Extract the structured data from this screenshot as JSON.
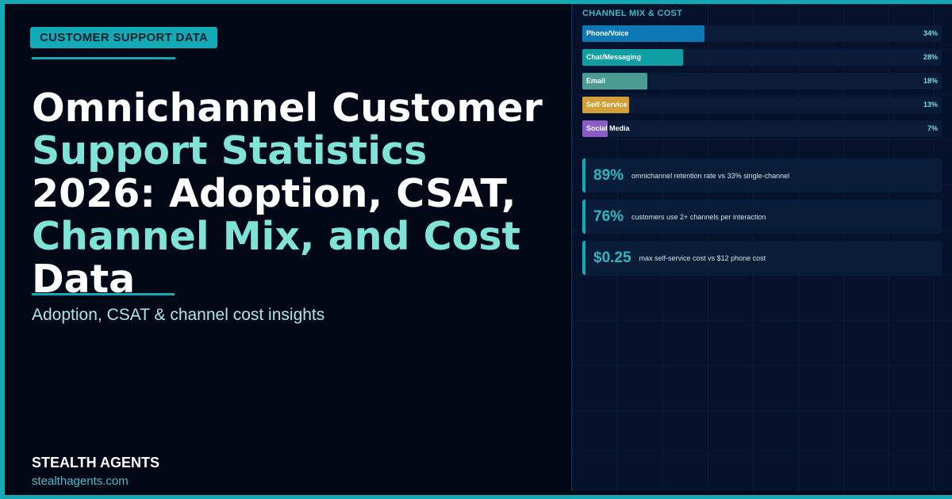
{
  "header": {
    "badge": "CUSTOMER SUPPORT DATA",
    "title_lines": [
      "Omnichannel Customer",
      "Support Statistics",
      "2026: Adoption, CSAT,",
      "Channel Mix, and Cost",
      "Data"
    ],
    "subtitle": "Adoption, CSAT & channel cost insights"
  },
  "footer": {
    "brand": "STEALTH AGENTS",
    "url": "stealthagents.com"
  },
  "chart_data": {
    "type": "bar",
    "orientation": "horizontal",
    "title": "CHANNEL MIX & COST",
    "categories": [
      "Phone/Voice",
      "Chat/Messaging",
      "Email",
      "Self-Service",
      "Social Media"
    ],
    "values": [
      34,
      28,
      18,
      13,
      7
    ],
    "value_labels": [
      "34%",
      "28%",
      "18%",
      "13%",
      "7%"
    ],
    "colors": [
      "#0e78b4",
      "#0f9ea4",
      "#4a9c92",
      "#d29e38",
      "#8a5cc6"
    ],
    "xlim": [
      0,
      100
    ]
  },
  "stats": [
    {
      "value": "89%",
      "text": "omnichannel retention rate vs 33% single-channel"
    },
    {
      "value": "76%",
      "text": "customers use 2+ channels per interaction"
    },
    {
      "value": "$0.25",
      "text": "max self-service cost vs $12 phone cost"
    }
  ]
}
